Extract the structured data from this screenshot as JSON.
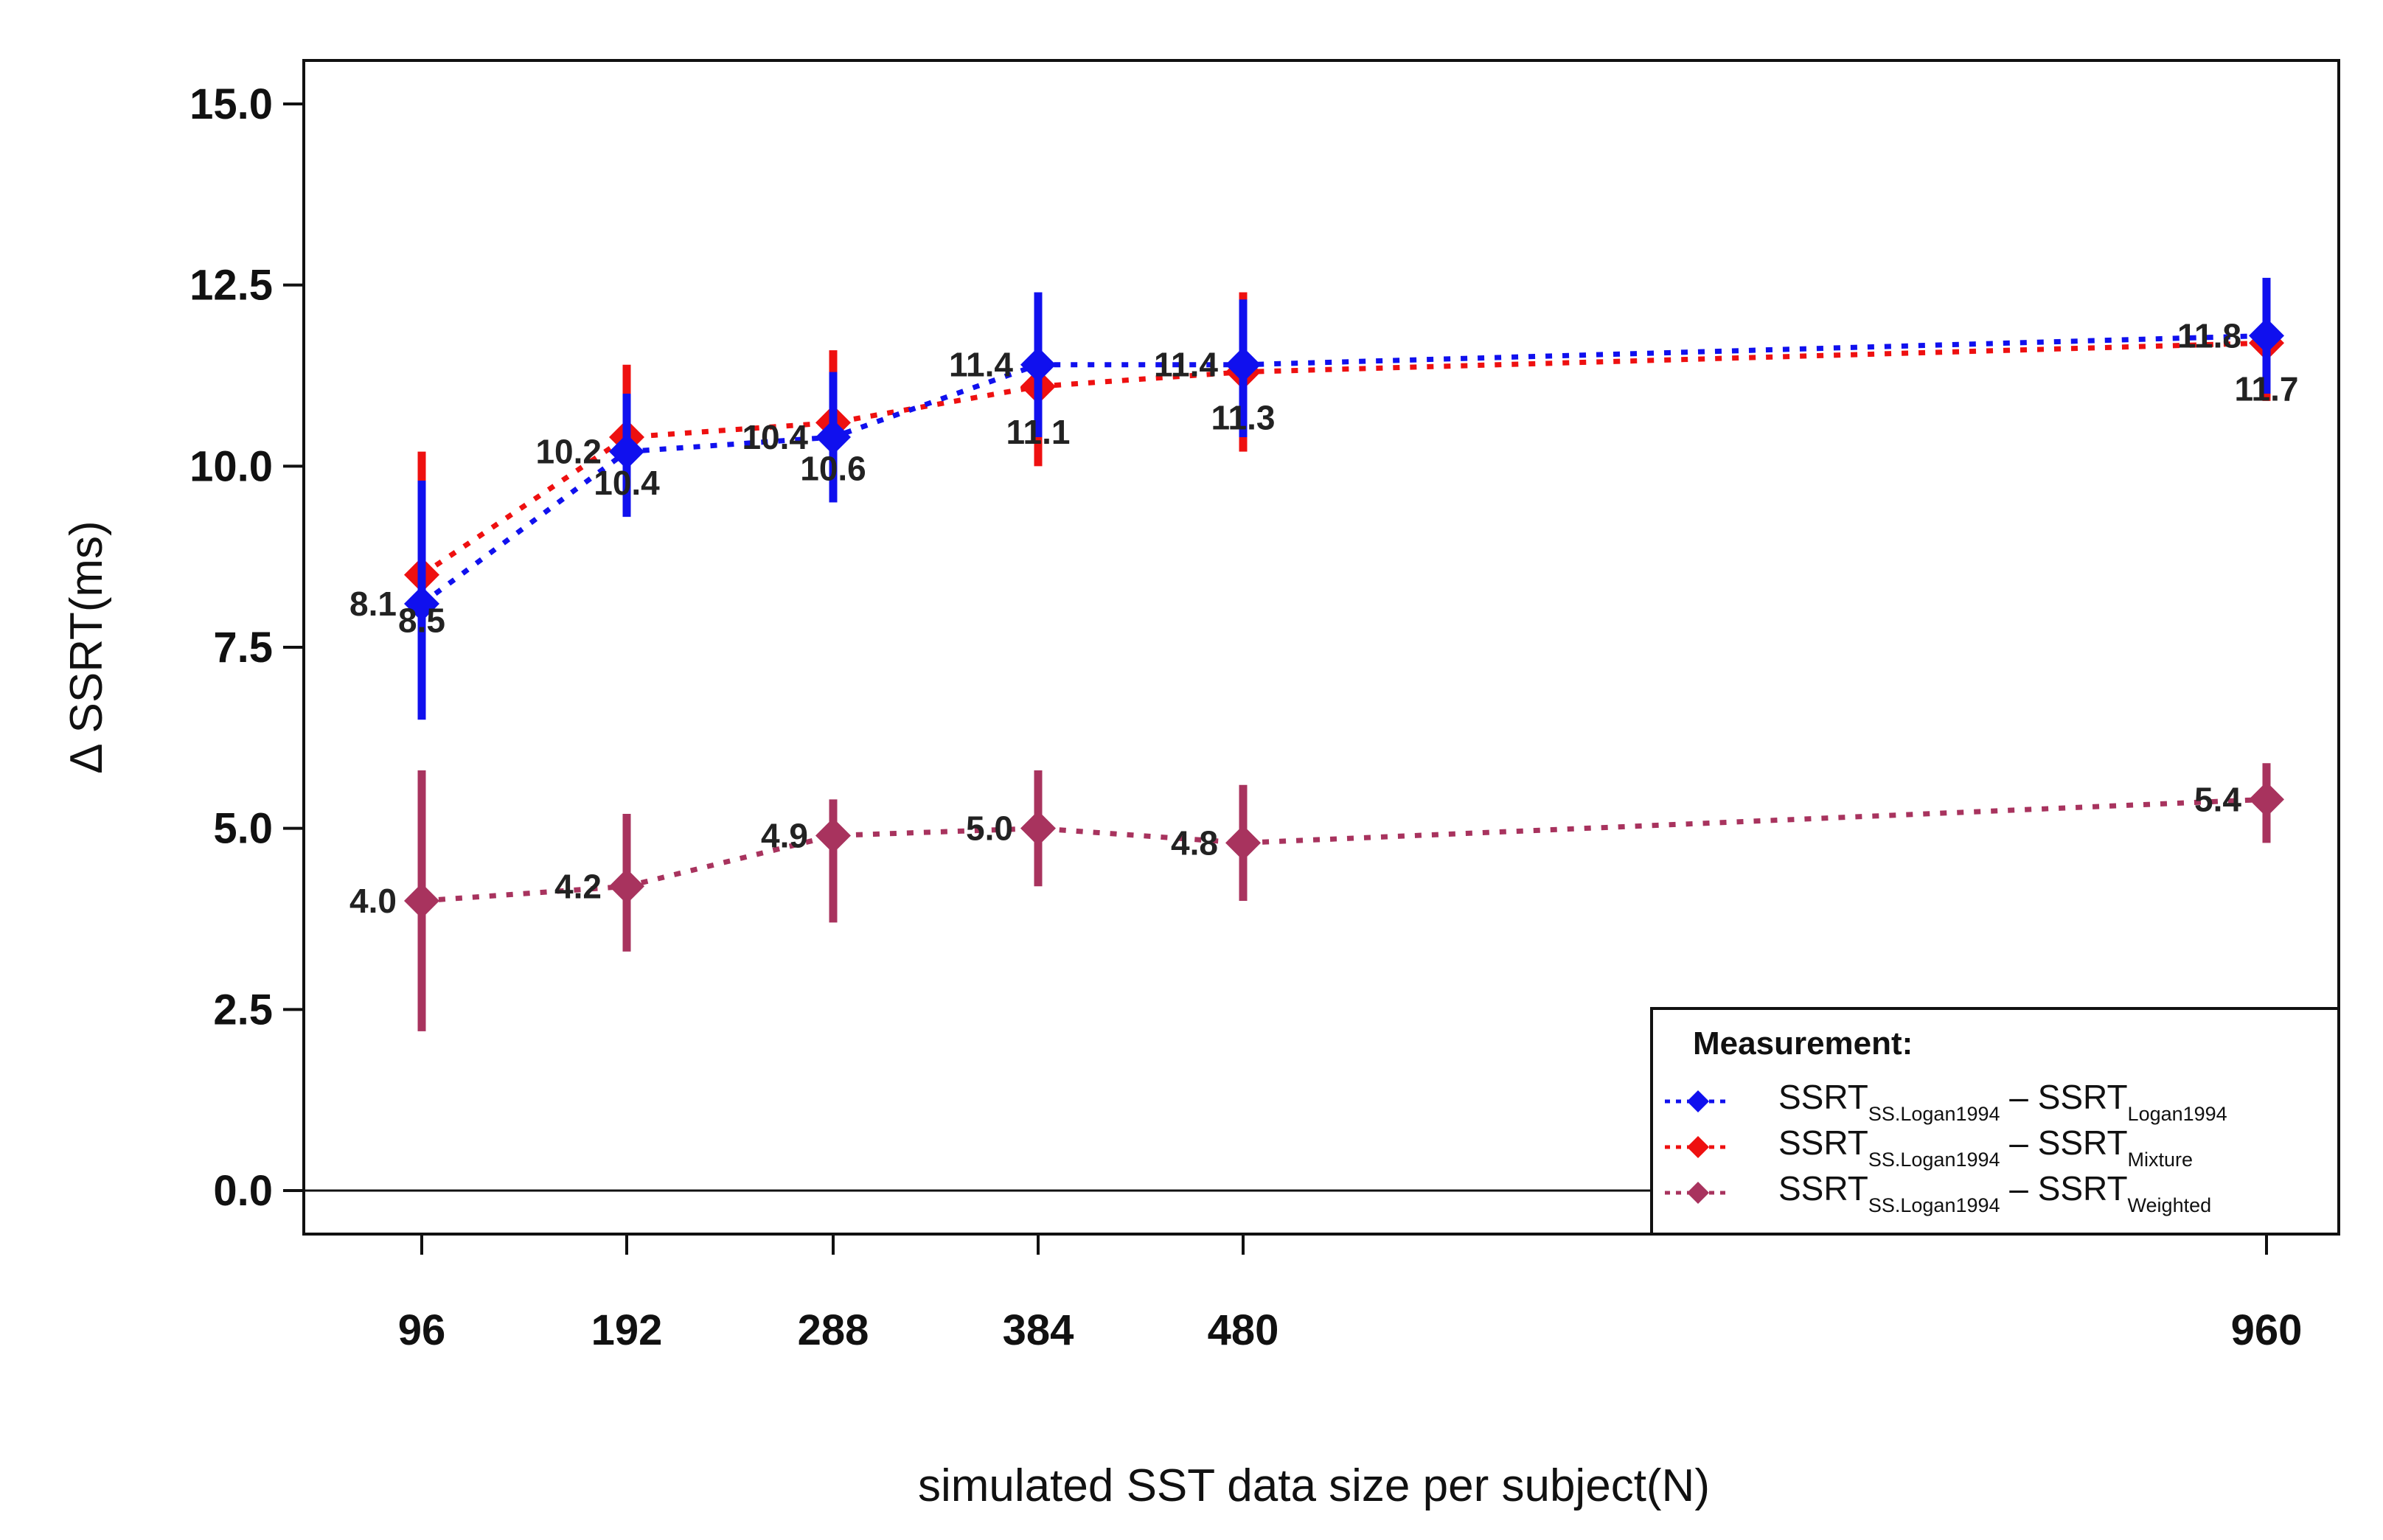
{
  "chart_data": {
    "type": "line",
    "title": "",
    "xlabel": "simulated SST data size per subject(N)",
    "ylabel": "Δ SSRT(ms)",
    "x": [
      96,
      192,
      288,
      384,
      480,
      960
    ],
    "x_tick_labels": [
      "96",
      "192",
      "288",
      "384",
      "480",
      "960"
    ],
    "y_tick_labels": [
      "0.0",
      "2.5",
      "5.0",
      "7.5",
      "10.0",
      "12.5",
      "15.0"
    ],
    "y_ticks": [
      0,
      2.5,
      5,
      7.5,
      10,
      12.5,
      15
    ],
    "ylim": [
      -0.6,
      15.6
    ],
    "xlim": [
      40,
      1000
    ],
    "grid": false,
    "reference_line_y": 0,
    "legend": {
      "title": "Measurement:",
      "position": "bottom-right"
    },
    "series": [
      {
        "legend": {
          "main1": "SSRT",
          "sub1": "SS.Logan1994",
          "dash": "–",
          "main2": "SSRT",
          "sub2": "Logan1994"
        },
        "color": "#1010ee",
        "values": [
          8.1,
          10.2,
          10.4,
          11.4,
          11.4,
          11.8
        ],
        "labels": [
          "8.1",
          "10.2",
          "10.4",
          "11.4",
          "11.4",
          "11.8"
        ],
        "label_side": [
          "left",
          "left",
          "left",
          "left",
          "left",
          "left"
        ],
        "err_low": [
          6.5,
          9.3,
          9.5,
          10.4,
          10.4,
          11.0
        ],
        "err_high": [
          9.8,
          11.0,
          11.3,
          12.4,
          12.3,
          12.6
        ]
      },
      {
        "legend": {
          "main1": "SSRT",
          "sub1": "SS.Logan1994",
          "dash": "–",
          "main2": "SSRT",
          "sub2": "Mixture"
        },
        "color": "#ee1010",
        "values": [
          8.5,
          10.4,
          10.6,
          11.1,
          11.3,
          11.7
        ],
        "labels": [
          "8.5",
          "10.4",
          "10.6",
          "11.1",
          "11.3",
          "11.7"
        ],
        "label_side": [
          "below",
          "below",
          "below",
          "below",
          "below",
          "below"
        ],
        "err_low": [
          6.8,
          9.5,
          9.7,
          10.0,
          10.2,
          10.9
        ],
        "err_high": [
          10.2,
          11.4,
          11.6,
          12.2,
          12.4,
          12.5
        ]
      },
      {
        "legend": {
          "main1": "SSRT",
          "sub1": "SS.Logan1994",
          "dash": "–",
          "main2": "SSRT",
          "sub2": "Weighted"
        },
        "color": "#a8335e",
        "values": [
          4.0,
          4.2,
          4.9,
          5.0,
          4.8,
          5.4
        ],
        "labels": [
          "4.0",
          "4.2",
          "4.9",
          "5.0",
          "4.8",
          "5.4"
        ],
        "label_side": [
          "left",
          "left",
          "left",
          "left",
          "left",
          "left"
        ],
        "err_low": [
          2.2,
          3.3,
          3.7,
          4.2,
          4.0,
          4.8
        ],
        "err_high": [
          5.8,
          5.2,
          5.4,
          5.8,
          5.6,
          5.9
        ]
      }
    ]
  }
}
